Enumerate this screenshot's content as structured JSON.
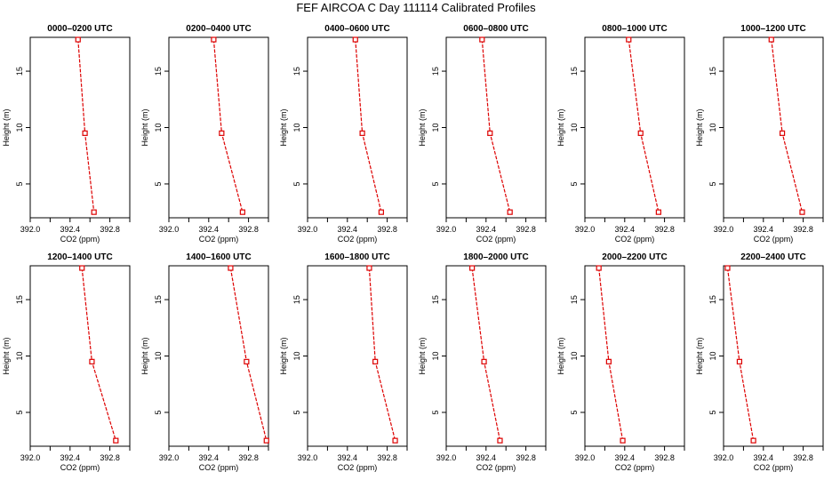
{
  "figure_title": "FEF AIRCOA C  Day 111114  Calibrated Profiles",
  "chart_data": [
    {
      "type": "line",
      "title": "0000–0200 UTC",
      "xlabel": "CO2 (ppm)",
      "ylabel": "Height (m)",
      "xlim": [
        392.0,
        393.0
      ],
      "ylim": [
        2,
        18
      ],
      "xticks": [
        392.0,
        392.4,
        392.8
      ],
      "yticks": [
        5,
        10,
        15
      ],
      "series": [
        {
          "x": [
            392.48,
            392.55,
            392.64
          ],
          "y": [
            17.8,
            9.5,
            2.5
          ]
        }
      ]
    },
    {
      "type": "line",
      "title": "0200–0400 UTC",
      "xlabel": "CO2 (ppm)",
      "ylabel": "Height (m)",
      "xlim": [
        392.0,
        393.0
      ],
      "ylim": [
        2,
        18
      ],
      "xticks": [
        392.0,
        392.4,
        392.8
      ],
      "yticks": [
        5,
        10,
        15
      ],
      "series": [
        {
          "x": [
            392.45,
            392.53,
            392.74
          ],
          "y": [
            17.8,
            9.5,
            2.5
          ]
        }
      ]
    },
    {
      "type": "line",
      "title": "0400–0600 UTC",
      "xlabel": "CO2 (ppm)",
      "ylabel": "Height (m)",
      "xlim": [
        392.0,
        393.0
      ],
      "ylim": [
        2,
        18
      ],
      "xticks": [
        392.0,
        392.4,
        392.8
      ],
      "yticks": [
        5,
        10,
        15
      ],
      "series": [
        {
          "x": [
            392.48,
            392.55,
            392.74
          ],
          "y": [
            17.8,
            9.5,
            2.5
          ]
        }
      ]
    },
    {
      "type": "line",
      "title": "0600–0800 UTC",
      "xlabel": "CO2 (ppm)",
      "ylabel": "Height (m)",
      "xlim": [
        392.0,
        393.0
      ],
      "ylim": [
        2,
        18
      ],
      "xticks": [
        392.0,
        392.4,
        392.8
      ],
      "yticks": [
        5,
        10,
        15
      ],
      "series": [
        {
          "x": [
            392.36,
            392.44,
            392.64
          ],
          "y": [
            17.8,
            9.5,
            2.5
          ]
        }
      ]
    },
    {
      "type": "line",
      "title": "0800–1000 UTC",
      "xlabel": "CO2 (ppm)",
      "ylabel": "Height (m)",
      "xlim": [
        392.0,
        393.0
      ],
      "ylim": [
        2,
        18
      ],
      "xticks": [
        392.0,
        392.4,
        392.8
      ],
      "yticks": [
        5,
        10,
        15
      ],
      "series": [
        {
          "x": [
            392.44,
            392.56,
            392.74
          ],
          "y": [
            17.8,
            9.5,
            2.5
          ]
        }
      ]
    },
    {
      "type": "line",
      "title": "1000–1200 UTC",
      "xlabel": "CO2 (ppm)",
      "ylabel": "Height (m)",
      "xlim": [
        392.0,
        393.0
      ],
      "ylim": [
        2,
        18
      ],
      "xticks": [
        392.0,
        392.4,
        392.8
      ],
      "yticks": [
        5,
        10,
        15
      ],
      "series": [
        {
          "x": [
            392.48,
            392.59,
            392.79
          ],
          "y": [
            17.8,
            9.5,
            2.5
          ]
        }
      ]
    },
    {
      "type": "line",
      "title": "1200–1400 UTC",
      "xlabel": "CO2 (ppm)",
      "ylabel": "Height (m)",
      "xlim": [
        392.0,
        393.0
      ],
      "ylim": [
        2,
        18
      ],
      "xticks": [
        392.0,
        392.4,
        392.8
      ],
      "yticks": [
        5,
        10,
        15
      ],
      "series": [
        {
          "x": [
            392.52,
            392.62,
            392.86
          ],
          "y": [
            17.8,
            9.5,
            2.5
          ]
        }
      ]
    },
    {
      "type": "line",
      "title": "1400–1600 UTC",
      "xlabel": "CO2 (ppm)",
      "ylabel": "Height (m)",
      "xlim": [
        392.0,
        393.0
      ],
      "ylim": [
        2,
        18
      ],
      "xticks": [
        392.0,
        392.4,
        392.8
      ],
      "yticks": [
        5,
        10,
        15
      ],
      "series": [
        {
          "x": [
            392.62,
            392.78,
            392.98
          ],
          "y": [
            17.8,
            9.5,
            2.5
          ]
        }
      ]
    },
    {
      "type": "line",
      "title": "1600–1800 UTC",
      "xlabel": "CO2 (ppm)",
      "ylabel": "Height (m)",
      "xlim": [
        392.0,
        393.0
      ],
      "ylim": [
        2,
        18
      ],
      "xticks": [
        392.0,
        392.4,
        392.8
      ],
      "yticks": [
        5,
        10,
        15
      ],
      "series": [
        {
          "x": [
            392.62,
            392.68,
            392.88
          ],
          "y": [
            17.8,
            9.5,
            2.5
          ]
        }
      ]
    },
    {
      "type": "line",
      "title": "1800–2000 UTC",
      "xlabel": "CO2 (ppm)",
      "ylabel": "Height (m)",
      "xlim": [
        392.0,
        393.0
      ],
      "ylim": [
        2,
        18
      ],
      "xticks": [
        392.0,
        392.4,
        392.8
      ],
      "yticks": [
        5,
        10,
        15
      ],
      "series": [
        {
          "x": [
            392.26,
            392.38,
            392.54
          ],
          "y": [
            17.8,
            9.5,
            2.5
          ]
        }
      ]
    },
    {
      "type": "line",
      "title": "2000–2200 UTC",
      "xlabel": "CO2 (ppm)",
      "ylabel": "Height (m)",
      "xlim": [
        392.0,
        393.0
      ],
      "ylim": [
        2,
        18
      ],
      "xticks": [
        392.0,
        392.4,
        392.8
      ],
      "yticks": [
        5,
        10,
        15
      ],
      "series": [
        {
          "x": [
            392.14,
            392.24,
            392.38
          ],
          "y": [
            17.8,
            9.5,
            2.5
          ]
        }
      ]
    },
    {
      "type": "line",
      "title": "2200–2400 UTC",
      "xlabel": "CO2 (ppm)",
      "ylabel": "Height (m)",
      "xlim": [
        392.0,
        393.0
      ],
      "ylim": [
        2,
        18
      ],
      "xticks": [
        392.0,
        392.4,
        392.8
      ],
      "yticks": [
        5,
        10,
        15
      ],
      "series": [
        {
          "x": [
            392.04,
            392.16,
            392.3
          ],
          "y": [
            17.8,
            9.5,
            2.5
          ]
        }
      ]
    }
  ],
  "colors": {
    "series": "#dd0000",
    "axis": "#000000"
  }
}
